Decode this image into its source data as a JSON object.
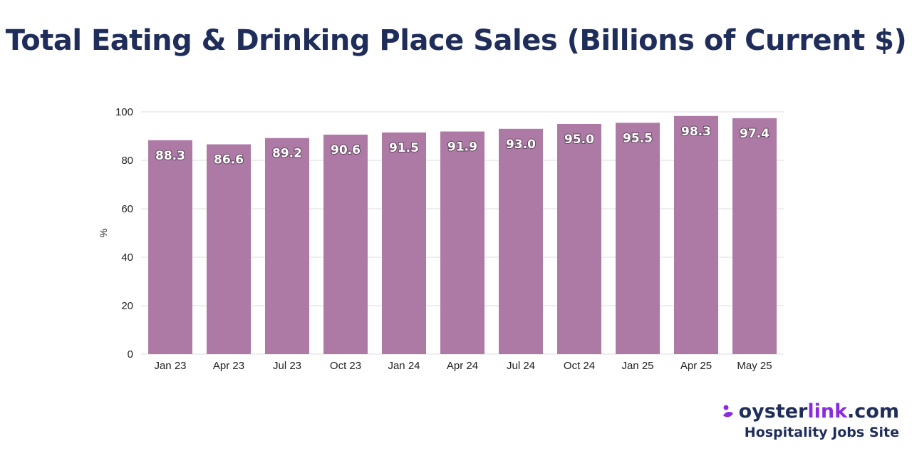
{
  "chart_data": {
    "type": "bar",
    "title": "Total Eating & Drinking Place Sales (Billions of Current $)",
    "xlabel": "",
    "ylabel": "%",
    "categories": [
      "Jan 23",
      "Apr 23",
      "Jul 23",
      "Oct 23",
      "Jan 24",
      "Apr 24",
      "Jul 24",
      "Oct 24",
      "Jan 25",
      "Apr 25",
      "May 25"
    ],
    "values": [
      88.3,
      86.6,
      89.2,
      90.6,
      91.5,
      91.9,
      93.0,
      95.0,
      95.5,
      98.3,
      97.4
    ],
    "data_labels": [
      "88.3",
      "86.6",
      "89.2",
      "90.6",
      "91.5",
      "91.9",
      "93.0",
      "95.0",
      "95.5",
      "98.3",
      "97.4"
    ],
    "ylim": [
      0,
      100
    ],
    "yticks": [
      0,
      20,
      40,
      60,
      80,
      100
    ],
    "grid": true,
    "legend": "none",
    "bar_color": "#ad7aa6",
    "grid_color": "#dddddd"
  },
  "brand": {
    "logo_icon": "oyster-drop-icon",
    "name_part1": "oyster",
    "name_part2": "link",
    "name_part3": ".com",
    "tagline": "Hospitality Jobs Site",
    "accent_color": "#8a2be2",
    "primary_color": "#1f2d5a"
  }
}
